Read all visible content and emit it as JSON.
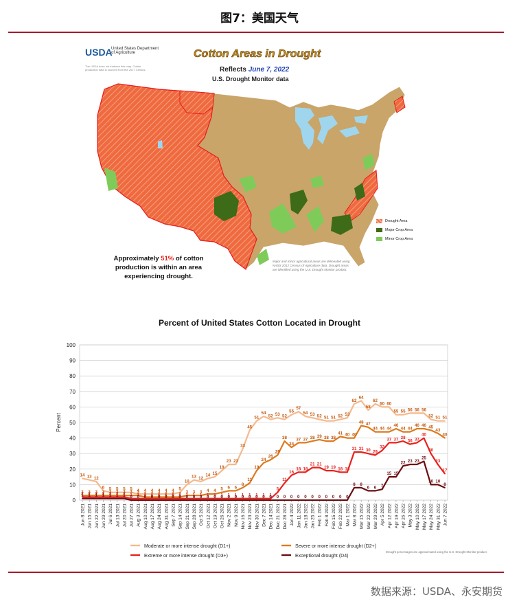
{
  "figure_title": "图7：美国天气",
  "map": {
    "agency": "USDA",
    "agency_dept": "United States Department of Agriculture",
    "disclaimer": "The USDA does not endorse this map. Cotton production data is sourced from the 2017 Census.",
    "title": "Cotton Areas in Drought",
    "subtitle_prefix": "Reflects",
    "subtitle_date": "June 7, 2022",
    "subtitle2": "U.S. Drought Monitor data",
    "statement_pre": "Approximately",
    "statement_pct": "51%",
    "statement_post": "of cotton production is within an area experiencing drought.",
    "note": "Major and minor agricultural areas are delineated using NASS 2012 Census of Agriculture data. Drought areas are identified using the U.S. Drought Monitor product.",
    "legend": [
      {
        "label": "Drought Area",
        "color": "#f0643c"
      },
      {
        "label": "Major Crop Area",
        "color": "#3d6b17"
      },
      {
        "label": "Minor Crop Area",
        "color": "#7fcb5a"
      }
    ],
    "colors": {
      "land": "#c9a56a",
      "drought": "#ef6a3f",
      "border": "#e81b1b",
      "major": "#3d6b17",
      "minor": "#7fcb5a",
      "water": "#9fd6ee"
    }
  },
  "chart_title": "Percent of United States Cotton Located in Drought",
  "footer": "数据来源：USDA、永安期货",
  "chart_data": {
    "type": "line",
    "title": "Percent of United States Cotton Located in Drought",
    "ylabel": "Percent",
    "xlabel": "",
    "ylim": [
      0,
      100
    ],
    "yticks": [
      0,
      10,
      20,
      30,
      40,
      50,
      60,
      70,
      80,
      90,
      100
    ],
    "grid": true,
    "legend_position": "bottom",
    "note": "Drought percentages are approximated using the U.S. Drought Monitor product.",
    "x_labels": [
      "Jun 8 2021",
      "Jun 15 2021",
      "Jun 22 2021",
      "Jun 29 2021",
      "Jul 6 2021",
      "Jul 13 2021",
      "Jul 20 2021",
      "Jul 27 2021",
      "Aug 3 2021",
      "Aug 10 2021",
      "Aug 17 2021",
      "Aug 24 2021",
      "Aug 31 2021",
      "Sep 7 2021",
      "Sep 14 2021",
      "Sep 21 2021",
      "Sep 28 2021",
      "Oct 5 2021",
      "Oct 12 2021",
      "Oct 19 2021",
      "Oct 26 2021",
      "Nov 2 2021",
      "Nov 9 2021",
      "Nov 16 2021",
      "Nov 23 2021",
      "Nov 30 2021",
      "Dec 7 2021",
      "Dec 14 2021",
      "Dec 21 2021",
      "Dec 28 2021",
      "Jan 4 2022",
      "Jan 11 2022",
      "Jan 18 2022",
      "Jan 25 2022",
      "Feb 1 2022",
      "Feb 8 2022",
      "Feb 15 2022",
      "Feb 22 2022",
      "Mar 1 2022",
      "Mar 8 2022",
      "Mar 15 2022",
      "Mar 22 2022",
      "Mar 29 2022",
      "Apr 5 2022",
      "Apr 12 2022",
      "Apr 19 2022",
      "Apr 26 2022",
      "May 3 2022",
      "May 10 2022",
      "May 17 2022",
      "May 24 2022",
      "May 31 2022",
      "Jun 7 2022"
    ],
    "series": [
      {
        "name": "Moderate or more intense drought (D1+)",
        "color": "#f5b98c",
        "label_color": "#c4590f",
        "values": [
          14,
          13,
          12,
          6,
          5,
          5,
          5,
          5,
          4,
          4,
          4,
          4,
          4,
          4,
          5,
          10,
          13,
          12,
          14,
          15,
          19,
          23,
          23,
          33,
          45,
          51,
          54,
          52,
          53,
          52,
          55,
          57,
          54,
          53,
          52,
          51,
          51,
          52,
          53,
          62,
          64,
          58,
          62,
          60,
          60,
          55,
          55,
          56,
          56,
          56,
          52,
          51,
          51
        ]
      },
      {
        "name": "Severe or more intense drought (D2+)",
        "color": "#dd7a1d",
        "label_color": "#c4590f",
        "values": [
          3,
          3,
          3,
          3,
          3,
          3,
          3,
          3,
          3,
          2,
          2,
          2,
          2,
          2,
          2,
          3,
          3,
          3,
          4,
          4,
          5,
          6,
          6,
          8,
          11,
          19,
          24,
          26,
          29,
          38,
          34,
          37,
          37,
          38,
          39,
          38,
          38,
          41,
          40,
          40,
          48,
          47,
          44,
          44,
          44,
          46,
          44,
          44,
          46,
          46,
          45,
          43,
          40
        ]
      },
      {
        "name": "Extreme or more intense drought (D3+)",
        "color": "#e8211c",
        "label_color": "#e8211c",
        "values": [
          2,
          2,
          2,
          2,
          2,
          2,
          2,
          1,
          1,
          1,
          1,
          1,
          1,
          1,
          1,
          1,
          1,
          1,
          1,
          1,
          1,
          1,
          1,
          1,
          1,
          1,
          1,
          1,
          5,
          11,
          16,
          18,
          18,
          21,
          21,
          19,
          19,
          18,
          18,
          31,
          31,
          30,
          29,
          32,
          37,
          37,
          38,
          36,
          37,
          40,
          30,
          23,
          17
        ]
      },
      {
        "name": "Exceptional drought (D4)",
        "color": "#6b0d10",
        "label_color": "#6b0d10",
        "values": [
          1,
          1,
          1,
          1,
          1,
          1,
          1,
          0,
          0,
          0,
          0,
          0,
          0,
          0,
          0,
          0,
          0,
          0,
          0,
          0,
          0,
          0,
          0,
          0,
          0,
          0,
          0,
          0,
          0,
          0,
          0,
          0,
          0,
          0,
          0,
          0,
          0,
          0,
          0,
          8,
          8,
          6,
          6,
          7,
          15,
          15,
          22,
          23,
          23,
          25,
          10,
          10,
          8
        ]
      }
    ]
  }
}
